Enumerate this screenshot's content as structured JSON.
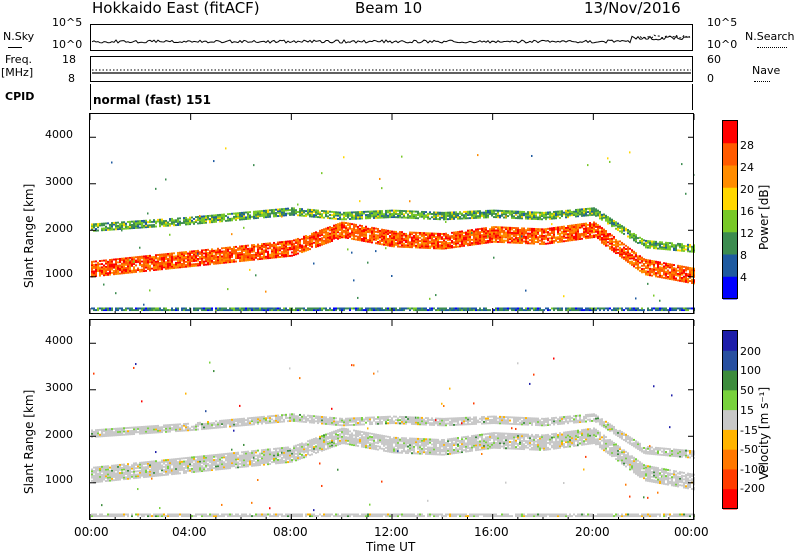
{
  "header": {
    "station": "Hokkaido East (fitACF)",
    "beam": "Beam 10",
    "date": "13/Nov/2016"
  },
  "noise_panel": {
    "left_label": "N.Sky",
    "right_label": "N.Search",
    "ticks": [
      "10^5",
      "10^0"
    ]
  },
  "freq_panel": {
    "label_freq": "Freq.",
    "label_unit": "[MHz]",
    "left_ticks": [
      "18",
      "8"
    ],
    "right_ticks": [
      "60",
      "0"
    ],
    "right_label": "Nave"
  },
  "cpid": {
    "label": "CPID",
    "value": "normal (fast) 151"
  },
  "axes": {
    "ylabel": "Slant Range [km]",
    "xlabel": "Time UT",
    "yticks": [
      "4000",
      "3000",
      "2000",
      "1000"
    ],
    "xticks": [
      "00:00",
      "04:00",
      "08:00",
      "12:00",
      "16:00",
      "20:00",
      "00:00"
    ]
  },
  "colorbars": {
    "power": {
      "label": "Power [dB]",
      "ticks": [
        "28",
        "24",
        "20",
        "16",
        "12",
        "8",
        "4"
      ],
      "colors": [
        "#ff0000",
        "#ff5a00",
        "#ff8c00",
        "#ffd700",
        "#78c828",
        "#3c8c50",
        "#1e5aa0",
        "#0000ff"
      ]
    },
    "velocity": {
      "label": "Velocity [m s⁻¹]",
      "ticks": [
        "200",
        "100",
        "50",
        "15",
        "-15",
        "-50",
        "-100",
        "-200"
      ],
      "colors": [
        "#1e1eaa",
        "#2850a0",
        "#3c8c3c",
        "#78d23c",
        "#c8c8c8",
        "#ffb400",
        "#ff7800",
        "#ff3c00",
        "#ff0000"
      ]
    }
  },
  "chart_data": [
    {
      "type": "line",
      "name": "noise",
      "x_range": [
        "00:00",
        "24:00"
      ],
      "ylim": [
        "10^0",
        "10^5"
      ],
      "series": [
        {
          "name": "N.Sky",
          "level": "low, roughly constant, with increase after 21:30"
        }
      ]
    },
    {
      "type": "heatmap",
      "name": "power",
      "xlabel": "Time UT",
      "ylabel": "Slant Range [km]",
      "x_range_hours": [
        0,
        24
      ],
      "ylim": [
        200,
        4500
      ],
      "bands": [
        {
          "label": "lower",
          "hours": [
            0,
            8,
            10,
            12,
            14,
            16,
            18,
            20,
            22,
            24
          ],
          "range_km": [
            1150,
            1600,
            2000,
            1800,
            1750,
            1900,
            1850,
            2000,
            1200,
            1000
          ],
          "value_db": 26
        },
        {
          "label": "upper",
          "hours": [
            0,
            4,
            8,
            10,
            12,
            14,
            16,
            18,
            20,
            22,
            24
          ],
          "range_km": [
            2050,
            2200,
            2400,
            2300,
            2350,
            2300,
            2350,
            2300,
            2400,
            1700,
            1600
          ],
          "value_db": 12
        },
        {
          "label": "near",
          "hours": [
            0,
            24
          ],
          "range_km": [
            300,
            300
          ],
          "value_db": 8
        }
      ]
    },
    {
      "type": "heatmap",
      "name": "velocity",
      "xlabel": "Time UT",
      "ylabel": "Slant Range [km]",
      "x_range_hours": [
        0,
        24
      ],
      "ylim": [
        200,
        4500
      ],
      "dominant_value": "-15 to 15 m/s"
    }
  ]
}
